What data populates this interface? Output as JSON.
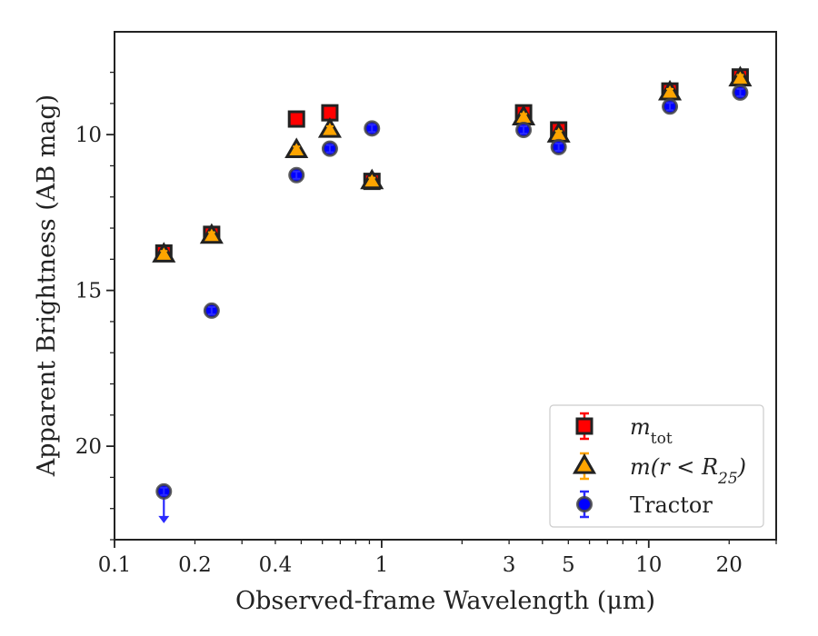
{
  "chart_data": {
    "type": "scatter",
    "xlabel": "Observed-frame Wavelength (μm)",
    "ylabel": "Apparent Brightness (AB mag)",
    "x_scale": "log",
    "y_inverted": true,
    "xlim": [
      0.1,
      30
    ],
    "ylim": [
      23,
      6.7
    ],
    "x_ticks": [
      {
        "value": 0.1,
        "label": "0.1"
      },
      {
        "value": 0.2,
        "label": "0.2"
      },
      {
        "value": 0.4,
        "label": "0.4"
      },
      {
        "value": 1,
        "label": "1"
      },
      {
        "value": 3,
        "label": "3"
      },
      {
        "value": 5,
        "label": "5"
      },
      {
        "value": 10,
        "label": "10"
      },
      {
        "value": 20,
        "label": "20"
      }
    ],
    "y_ticks": [
      {
        "value": 10,
        "label": "10"
      },
      {
        "value": 15,
        "label": "15"
      },
      {
        "value": 20,
        "label": "20"
      }
    ],
    "grid": false,
    "legend_position": "lower-right",
    "series": [
      {
        "name": "m_tot",
        "label_main": "m",
        "label_sub": "tot",
        "marker": "square",
        "color": "#ff0000",
        "edge_color": "#222222",
        "error_color": "#ff0000",
        "points": [
          {
            "x": 0.153,
            "y": 13.8
          },
          {
            "x": 0.231,
            "y": 13.2
          },
          {
            "x": 0.48,
            "y": 9.5
          },
          {
            "x": 0.64,
            "y": 9.3
          },
          {
            "x": 0.92,
            "y": 11.5
          },
          {
            "x": 3.4,
            "y": 9.3
          },
          {
            "x": 4.6,
            "y": 9.85
          },
          {
            "x": 12.0,
            "y": 8.6
          },
          {
            "x": 22.0,
            "y": 8.15
          }
        ]
      },
      {
        "name": "m(r < R25)",
        "label_main": "m(r < R",
        "label_sub": "25",
        "label_tail": ")",
        "marker": "triangle",
        "color": "#ffa500",
        "edge_color": "#222222",
        "error_color": "#ffa500",
        "points": [
          {
            "x": 0.153,
            "y": 13.85
          },
          {
            "x": 0.231,
            "y": 13.25
          },
          {
            "x": 0.48,
            "y": 10.5
          },
          {
            "x": 0.64,
            "y": 9.85
          },
          {
            "x": 0.92,
            "y": 11.5
          },
          {
            "x": 3.4,
            "y": 9.45
          },
          {
            "x": 4.6,
            "y": 10.0
          },
          {
            "x": 12.0,
            "y": 8.65
          },
          {
            "x": 22.0,
            "y": 8.2
          }
        ]
      },
      {
        "name": "Tractor",
        "label_main": "Tractor",
        "marker": "circle",
        "color": "#0000ff",
        "edge_color": "#444444",
        "error_color": "#2a2aff",
        "points": [
          {
            "x": 0.153,
            "y": 21.45,
            "upper_limit": true
          },
          {
            "x": 0.231,
            "y": 15.65
          },
          {
            "x": 0.48,
            "y": 11.3
          },
          {
            "x": 0.64,
            "y": 10.45
          },
          {
            "x": 0.92,
            "y": 9.8
          },
          {
            "x": 3.4,
            "y": 9.85
          },
          {
            "x": 4.6,
            "y": 10.4
          },
          {
            "x": 12.0,
            "y": 9.1
          },
          {
            "x": 22.0,
            "y": 8.65
          }
        ]
      }
    ]
  }
}
